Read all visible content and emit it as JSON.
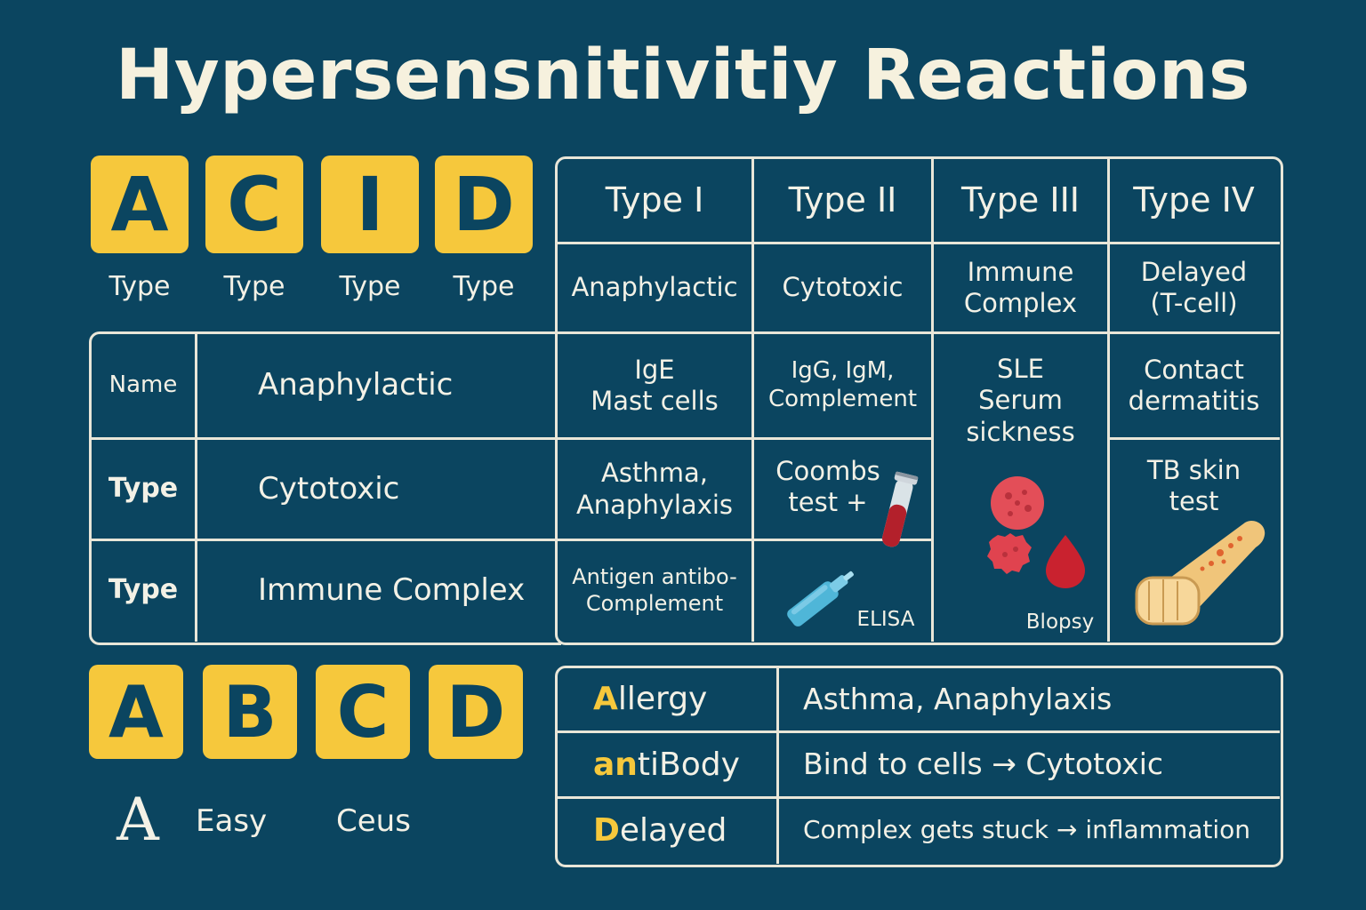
{
  "title": "Hypersensnitivitiy Reactions",
  "acid": {
    "tiles": [
      "A",
      "C",
      "I",
      "D"
    ],
    "captions": [
      "Type",
      "Type",
      "Type",
      "Type"
    ]
  },
  "types_table": {
    "headers": [
      "Type I",
      "Type II",
      "Type III",
      "Type IV"
    ],
    "names": [
      "Anaphylactic",
      "Cytotoxic",
      "Immune\nComplex",
      "Delayed\n(T-cell)"
    ],
    "type1": [
      "IgE\nMast cells",
      "Asthma,\nAnaphylaxis",
      "Antigen antibo-\nComplement"
    ],
    "type2": [
      "IgG, IgM,\nComplement",
      "Coombs\ntest +",
      "ELISA"
    ],
    "type3": [
      "SLE\nSerum\nsickness",
      "Blopsy"
    ],
    "type4": [
      "Contact\ndermatitis",
      "TB skin\ntest"
    ]
  },
  "left_table": {
    "rows": [
      {
        "label": "Name",
        "value": "Anaphylactic"
      },
      {
        "label": "Type",
        "value": "Cytotoxic"
      },
      {
        "label": "Type",
        "value": "Immune Complex"
      }
    ]
  },
  "abcd": {
    "tiles": [
      "A",
      "B",
      "C",
      "D"
    ],
    "caption_big": "A",
    "caption_easy": "Easy",
    "caption_ceus": "Ceus"
  },
  "mnemonic": {
    "rows": [
      {
        "hl": "A",
        "rest": "llergy",
        "desc": "Asthma, Anaphylaxis"
      },
      {
        "hl": "an",
        "rest": "tiBody",
        "desc": "Bind to cells → Cytotoxic"
      },
      {
        "hl": "D",
        "rest": "elayed",
        "desc": "Complex gets stuck → inflammation"
      }
    ]
  },
  "colors": {
    "background": "#0b4560",
    "accent": "#f6c83c",
    "grid": "#e9e6d8",
    "text": "#f3f1e6"
  },
  "icons": [
    "test-tube-icon",
    "pipette-icon",
    "red-blood-cell-icon",
    "blood-drop-icon",
    "arm-rash-icon"
  ]
}
